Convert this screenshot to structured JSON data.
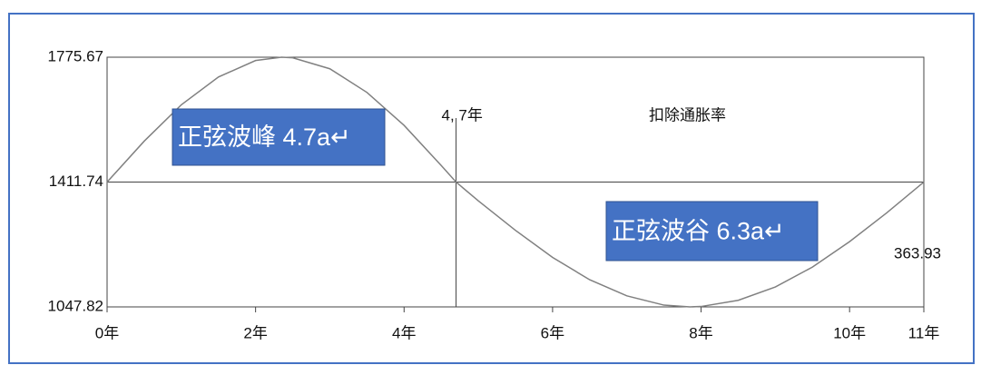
{
  "chart_data": {
    "type": "line",
    "x": [
      0,
      0.5,
      1,
      1.5,
      2,
      2.35,
      2.5,
      3,
      3.5,
      4,
      4.5,
      4.7,
      5,
      5.5,
      6,
      6.5,
      7,
      7.5,
      7.85,
      8,
      8.5,
      9,
      9.5,
      10,
      10.5,
      11
    ],
    "series": [
      {
        "color": "#808080",
        "values": [
          1411.74,
          1531,
          1637,
          1718,
          1766,
          1775.67,
          1774,
          1742,
          1673,
          1577,
          1460,
          1411.74,
          1357,
          1271,
          1192,
          1127,
          1080,
          1053,
          1047.82,
          1049,
          1067,
          1106,
          1164,
          1238,
          1322,
          1411.74
        ]
      }
    ],
    "xlim": [
      0,
      11
    ],
    "xticks": [
      {
        "value": 0,
        "label": "0年"
      },
      {
        "value": 2,
        "label": "2年"
      },
      {
        "value": 4,
        "label": "4年"
      },
      {
        "value": 6,
        "label": "6年"
      },
      {
        "value": 8,
        "label": "8年"
      },
      {
        "value": 10,
        "label": "10年"
      },
      {
        "value": 11,
        "label": "11年"
      }
    ],
    "ylim": [
      1047.82,
      1775.67
    ],
    "yticks": [
      1047.82,
      1411.74,
      1775.67
    ],
    "grid": true,
    "marker": {
      "x": 4.7,
      "label": "4, 7年"
    },
    "annotations": [
      "扣除通胀率",
      "363.93"
    ],
    "boxes": [
      "正弦波峰 4.7a↵",
      "正弦波谷 6.3a↵"
    ],
    "box_color": "#4472c4"
  }
}
